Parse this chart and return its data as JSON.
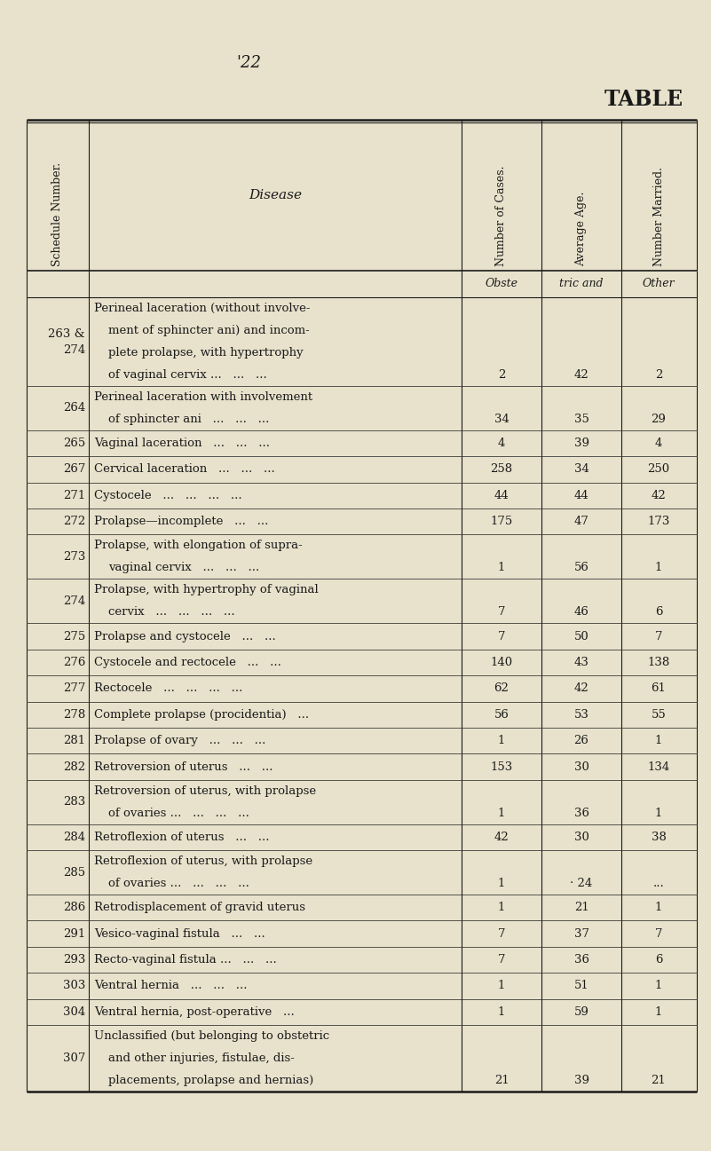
{
  "page_number": "'22",
  "title": "TABLE",
  "bg_color": "#e8e2cc",
  "text_color": "#1a1a1a",
  "rows": [
    {
      "schedule": "263 &\n274",
      "disease_lines": [
        "Perineal laceration (without involve-",
        "ment of sphincter ani) and incom-",
        "plete prolapse, with hypertrophy",
        "of vaginal cervix ...   ...   ..."
      ],
      "cases": "2",
      "age": "42",
      "married": "2"
    },
    {
      "schedule": "264",
      "disease_lines": [
        "Perineal laceration with involvement",
        "of sphincter ani   ...   ...   ..."
      ],
      "cases": "34",
      "age": "35",
      "married": "29"
    },
    {
      "schedule": "265",
      "disease_lines": [
        "Vaginal laceration   ...   ...   ..."
      ],
      "cases": "4",
      "age": "39",
      "married": "4"
    },
    {
      "schedule": "267",
      "disease_lines": [
        "Cervical laceration   ...   ...   ..."
      ],
      "cases": "258",
      "age": "34",
      "married": "250"
    },
    {
      "schedule": "271",
      "disease_lines": [
        "Cystocele   ...   ...   ...   ..."
      ],
      "cases": "44",
      "age": "44",
      "married": "42"
    },
    {
      "schedule": "272",
      "disease_lines": [
        "Prolapse—incomplete   ...   ..."
      ],
      "cases": "175",
      "age": "47",
      "married": "173"
    },
    {
      "schedule": "273",
      "disease_lines": [
        "Prolapse, with elongation of supra-",
        "vaginal cervix   ...   ...   ..."
      ],
      "cases": "1",
      "age": "56",
      "married": "1"
    },
    {
      "schedule": "274",
      "disease_lines": [
        "Prolapse, with hypertrophy of vaginal",
        "cervix   ...   ...   ...   ..."
      ],
      "cases": "7",
      "age": "46",
      "married": "6"
    },
    {
      "schedule": "275",
      "disease_lines": [
        "Prolapse and cystocele   ...   ..."
      ],
      "cases": "7",
      "age": "50",
      "married": "7"
    },
    {
      "schedule": "276",
      "disease_lines": [
        "Cystocele and rectocele   ...   ..."
      ],
      "cases": "140",
      "age": "43",
      "married": "138"
    },
    {
      "schedule": "277",
      "disease_lines": [
        "Rectocele   ...   ...   ...   ..."
      ],
      "cases": "62",
      "age": "42",
      "married": "61"
    },
    {
      "schedule": "278",
      "disease_lines": [
        "Complete prolapse (procidentia)   ..."
      ],
      "cases": "56",
      "age": "53",
      "married": "55"
    },
    {
      "schedule": "281",
      "disease_lines": [
        "Prolapse of ovary   ...   ...   ..."
      ],
      "cases": "1",
      "age": "26",
      "married": "1"
    },
    {
      "schedule": "282",
      "disease_lines": [
        "Retroversion of uterus   ...   ..."
      ],
      "cases": "153",
      "age": "30",
      "married": "134"
    },
    {
      "schedule": "283",
      "disease_lines": [
        "Retroversion of uterus, with prolapse",
        "of ovaries ...   ...   ...   ..."
      ],
      "cases": "1",
      "age": "36",
      "married": "1"
    },
    {
      "schedule": "284",
      "disease_lines": [
        "Retroflexion of uterus   ...   ..."
      ],
      "cases": "42",
      "age": "30",
      "married": "38"
    },
    {
      "schedule": "285",
      "disease_lines": [
        "Retroflexion of uterus, with prolapse",
        "of ovaries ...   ...   ...   ..."
      ],
      "cases": "1",
      "age": "· 24",
      "married": "..."
    },
    {
      "schedule": "286",
      "disease_lines": [
        "Retrodisplacement of gravid uterus"
      ],
      "cases": "1",
      "age": "21",
      "married": "1"
    },
    {
      "schedule": "291",
      "disease_lines": [
        "Vesico-vaginal fistula   ...   ..."
      ],
      "cases": "7",
      "age": "37",
      "married": "7"
    },
    {
      "schedule": "293",
      "disease_lines": [
        "Recto-vaginal fistula ...   ...   ..."
      ],
      "cases": "7",
      "age": "36",
      "married": "6"
    },
    {
      "schedule": "303",
      "disease_lines": [
        "Ventral hernia   ...   ...   ..."
      ],
      "cases": "1",
      "age": "51",
      "married": "1"
    },
    {
      "schedule": "304",
      "disease_lines": [
        "Ventral hernia, post-operative   ..."
      ],
      "cases": "1",
      "age": "59",
      "married": "1"
    },
    {
      "schedule": "307",
      "disease_lines": [
        "Unclassified (but belonging to obstetric",
        "and other injuries, fistulae, dis-",
        "placements, prolapse and hernias)"
      ],
      "cases": "21",
      "age": "39",
      "married": "21"
    }
  ]
}
